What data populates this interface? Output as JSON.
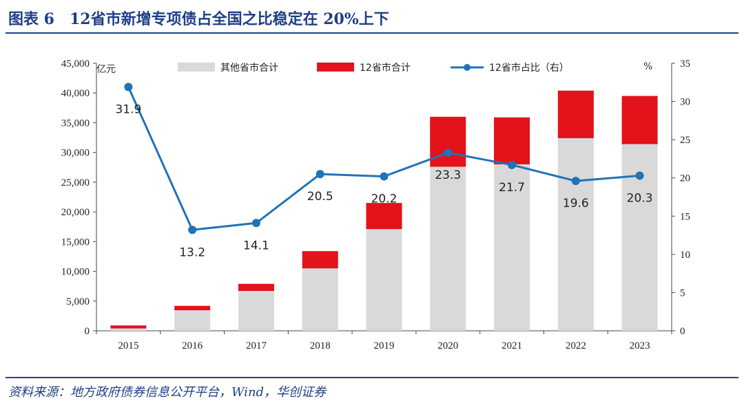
{
  "header": {
    "title": "图表 6　12省市新增专项债占全国之比稳定在 20%上下"
  },
  "footer": {
    "source": "资料来源：地方政府债券信息公开平台，Wind，华创证券"
  },
  "chart_data": {
    "type": "bar",
    "stacked": true,
    "categories": [
      "2015",
      "2016",
      "2017",
      "2018",
      "2019",
      "2020",
      "2021",
      "2022",
      "2023"
    ],
    "left_axis": {
      "unit": "亿元",
      "ylim": [
        0,
        45000
      ],
      "ticks": [
        "0",
        "5,000",
        "10,000",
        "15,000",
        "20,000",
        "25,000",
        "30,000",
        "35,000",
        "40,000",
        "45,000"
      ]
    },
    "right_axis": {
      "unit": "%",
      "ylim": [
        0,
        35
      ],
      "ticks": [
        "0",
        "5",
        "10",
        "15",
        "20",
        "25",
        "30",
        "35"
      ]
    },
    "series": [
      {
        "name": "其他省市合计",
        "type": "bar",
        "axis": "left",
        "color": "#d9d9d9",
        "values": [
          400,
          3450,
          6700,
          10500,
          17100,
          27600,
          28000,
          32400,
          31400
        ]
      },
      {
        "name": "12省市合计",
        "type": "bar",
        "axis": "left",
        "color": "#e3121b",
        "values": [
          500,
          750,
          1200,
          2900,
          4400,
          8400,
          7900,
          8000,
          8100
        ]
      },
      {
        "name": "12省市占比（右）",
        "type": "line",
        "axis": "right",
        "color": "#1f73b7",
        "values": [
          31.9,
          13.2,
          14.1,
          20.5,
          20.2,
          23.3,
          21.7,
          19.6,
          20.3
        ],
        "labels": [
          "31.9",
          "13.2",
          "14.1",
          "20.5",
          "20.2",
          "23.3",
          "21.7",
          "19.6",
          "20.3"
        ]
      }
    ],
    "legend_position": "top",
    "grid": false
  }
}
